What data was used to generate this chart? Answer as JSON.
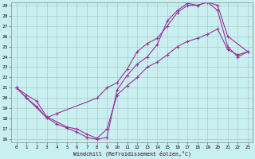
{
  "xlabel": "Windchill (Refroidissement éolien,°C)",
  "bg_color": "#c8f0f0",
  "line_color": "#993399",
  "grid_color": "#b0c8c8",
  "xmin": 0,
  "xmax": 23,
  "ymin": 16,
  "ymax": 29,
  "line1_x": [
    0,
    1,
    2,
    3,
    4,
    5,
    6,
    7,
    8,
    9,
    10,
    11,
    12,
    13,
    14,
    15,
    16,
    17,
    18,
    19,
    20,
    21,
    22,
    23
  ],
  "line1_y": [
    21.0,
    20.0,
    19.2,
    18.1,
    17.5,
    17.1,
    16.7,
    16.2,
    16.0,
    16.2,
    20.8,
    22.2,
    23.3,
    24.0,
    25.2,
    27.5,
    28.5,
    29.2,
    29.0,
    29.3,
    28.5,
    25.0,
    24.0,
    24.5
  ],
  "line2_x": [
    0,
    1,
    3,
    4,
    8,
    9,
    10,
    11,
    12,
    13,
    14,
    15,
    16,
    17,
    18,
    19,
    20,
    21,
    23
  ],
  "line2_y": [
    21.0,
    20.0,
    18.1,
    18.5,
    20.0,
    21.0,
    21.5,
    22.8,
    24.5,
    25.3,
    25.8,
    27.0,
    28.3,
    29.0,
    29.0,
    29.3,
    29.0,
    26.0,
    24.5
  ],
  "line3_x": [
    0,
    1,
    2,
    3,
    5,
    6,
    7,
    8,
    9,
    10,
    11,
    12,
    13,
    14,
    15,
    16,
    17,
    18,
    19,
    20,
    21,
    22,
    23
  ],
  "line3_y": [
    21.0,
    20.3,
    19.7,
    18.2,
    17.2,
    17.0,
    16.5,
    16.1,
    17.0,
    20.3,
    21.2,
    22.0,
    23.0,
    23.5,
    24.2,
    25.0,
    25.5,
    25.8,
    26.2,
    26.7,
    24.7,
    24.2,
    24.5
  ],
  "xticks": [
    0,
    1,
    2,
    3,
    4,
    5,
    6,
    7,
    8,
    9,
    10,
    11,
    12,
    13,
    14,
    15,
    16,
    17,
    18,
    19,
    20,
    21,
    22,
    23
  ],
  "yticks": [
    16,
    17,
    18,
    19,
    20,
    21,
    22,
    23,
    24,
    25,
    26,
    27,
    28,
    29
  ]
}
